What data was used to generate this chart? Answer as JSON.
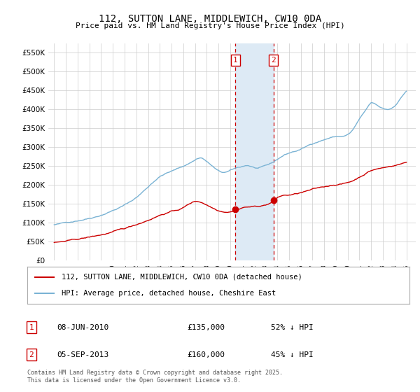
{
  "title": "112, SUTTON LANE, MIDDLEWICH, CW10 0DA",
  "subtitle": "Price paid vs. HM Land Registry's House Price Index (HPI)",
  "ylim": [
    0,
    575000
  ],
  "yticks": [
    0,
    50000,
    100000,
    150000,
    200000,
    250000,
    300000,
    350000,
    400000,
    450000,
    500000,
    550000
  ],
  "sale1_x": 2010.44,
  "sale1_y": 135000,
  "sale1_date": "08-JUN-2010",
  "sale1_price": "£135,000",
  "sale1_pct": "52% ↓ HPI",
  "sale2_x": 2013.67,
  "sale2_y": 160000,
  "sale2_date": "05-SEP-2013",
  "sale2_price": "£160,000",
  "sale2_pct": "45% ↓ HPI",
  "hpi_color": "#7ab3d4",
  "property_color": "#cc0000",
  "shade_color": "#ddeaf5",
  "vline_color": "#cc0000",
  "grid_color": "#cccccc",
  "legend_label_property": "112, SUTTON LANE, MIDDLEWICH, CW10 0DA (detached house)",
  "legend_label_hpi": "HPI: Average price, detached house, Cheshire East",
  "footnote": "Contains HM Land Registry data © Crown copyright and database right 2025.\nThis data is licensed under the Open Government Licence v3.0.",
  "xlim_left": 1994.5,
  "xlim_right": 2025.8
}
